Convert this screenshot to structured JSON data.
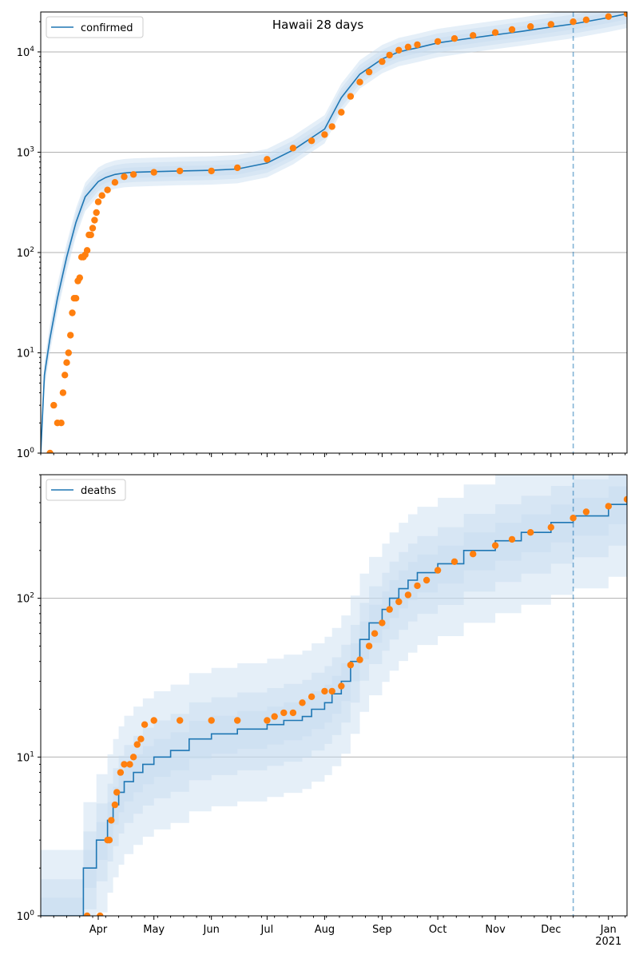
{
  "title": "Hawaii 28 days",
  "colors": {
    "model": "#1f77b4",
    "observed": "#ff7f0e",
    "band": "#c6dbef",
    "grid": "#b0b0b0",
    "forecast_line": "#1f77b4"
  },
  "x_axis": {
    "start": "2020-03-01",
    "end": "2021-01-11",
    "forecast_start": "2020-12-13",
    "month_labels": [
      "Apr",
      "May",
      "Jun",
      "Jul",
      "Aug",
      "Sep",
      "Oct",
      "Nov",
      "Dec",
      "Jan"
    ],
    "month_dates": [
      "2020-04-01",
      "2020-05-01",
      "2020-06-01",
      "2020-07-01",
      "2020-08-01",
      "2020-09-01",
      "2020-10-01",
      "2020-11-01",
      "2020-12-01",
      "2021-01-01"
    ],
    "year_label": "2021"
  },
  "chart_data": [
    {
      "type": "line",
      "panel": "top",
      "legend": "confirmed",
      "legend_position": "top-left",
      "yscale": "log",
      "ylim": [
        1,
        25000
      ],
      "y_tick_labels": [
        "10^0",
        "10^1",
        "10^2",
        "10^3",
        "10^4"
      ],
      "y_tick_values": [
        1,
        10,
        100,
        1000,
        10000
      ],
      "grid": "horizontal",
      "model": {
        "x": [
          "2020-03-01",
          "2020-03-03",
          "2020-03-06",
          "2020-03-10",
          "2020-03-15",
          "2020-03-20",
          "2020-03-25",
          "2020-04-01",
          "2020-04-05",
          "2020-04-10",
          "2020-04-15",
          "2020-04-20",
          "2020-05-01",
          "2020-05-15",
          "2020-06-01",
          "2020-06-15",
          "2020-07-01",
          "2020-07-15",
          "2020-08-01",
          "2020-08-10",
          "2020-08-20",
          "2020-09-01",
          "2020-09-10",
          "2020-09-20",
          "2020-10-01",
          "2020-10-15",
          "2020-11-01",
          "2020-11-15",
          "2020-12-01",
          "2020-12-13",
          "2021-01-01",
          "2021-01-11"
        ],
        "y": [
          1,
          6,
          14,
          35,
          90,
          200,
          360,
          510,
          560,
          600,
          620,
          630,
          640,
          650,
          660,
          680,
          780,
          1050,
          1700,
          3500,
          6000,
          8500,
          10000,
          11000,
          12300,
          13400,
          14800,
          16000,
          17700,
          19000,
          22000,
          24000
        ],
        "band_multipliers": [
          [
            0.72,
            1.38
          ],
          [
            0.8,
            1.24
          ],
          [
            0.88,
            1.12
          ]
        ]
      },
      "observed": {
        "x": [
          "2020-03-06",
          "2020-03-08",
          "2020-03-10",
          "2020-03-12",
          "2020-03-13",
          "2020-03-14",
          "2020-03-15",
          "2020-03-16",
          "2020-03-17",
          "2020-03-18",
          "2020-03-19",
          "2020-03-20",
          "2020-03-21",
          "2020-03-22",
          "2020-03-23",
          "2020-03-24",
          "2020-03-25",
          "2020-03-26",
          "2020-03-27",
          "2020-03-28",
          "2020-03-29",
          "2020-03-30",
          "2020-03-31",
          "2020-04-01",
          "2020-04-03",
          "2020-04-06",
          "2020-04-10",
          "2020-04-15",
          "2020-04-20",
          "2020-05-01",
          "2020-05-15",
          "2020-06-01",
          "2020-06-15",
          "2020-07-01",
          "2020-07-15",
          "2020-07-25",
          "2020-08-01",
          "2020-08-05",
          "2020-08-10",
          "2020-08-15",
          "2020-08-20",
          "2020-08-25",
          "2020-09-01",
          "2020-09-05",
          "2020-09-10",
          "2020-09-15",
          "2020-09-20",
          "2020-10-01",
          "2020-10-10",
          "2020-10-20",
          "2020-11-01",
          "2020-11-10",
          "2020-11-20",
          "2020-12-01",
          "2020-12-13",
          "2020-12-20",
          "2021-01-01",
          "2021-01-11"
        ],
        "y": [
          1,
          3,
          2,
          2,
          4,
          6,
          8,
          10,
          15,
          25,
          35,
          35,
          52,
          56,
          90,
          90,
          95,
          105,
          150,
          150,
          175,
          210,
          250,
          320,
          370,
          420,
          500,
          570,
          600,
          630,
          650,
          650,
          700,
          850,
          1100,
          1300,
          1500,
          1800,
          2500,
          3600,
          5000,
          6300,
          8000,
          9300,
          10400,
          11200,
          11800,
          12700,
          13600,
          14600,
          15600,
          16700,
          17900,
          18800,
          20000,
          20900,
          22500,
          24000
        ]
      }
    },
    {
      "type": "line",
      "panel": "bottom",
      "legend": "deaths",
      "legend_position": "top-left",
      "yscale": "log",
      "ylim": [
        1,
        600
      ],
      "y_tick_labels": [
        "10^0",
        "10^1",
        "10^2"
      ],
      "y_tick_values": [
        1,
        10,
        100
      ],
      "grid": "horizontal",
      "model_step": {
        "x": [
          "2020-03-01",
          "2020-03-24",
          "2020-03-31",
          "2020-04-06",
          "2020-04-09",
          "2020-04-12",
          "2020-04-15",
          "2020-04-20",
          "2020-04-25",
          "2020-05-01",
          "2020-05-10",
          "2020-05-20",
          "2020-06-01",
          "2020-06-15",
          "2020-07-01",
          "2020-07-10",
          "2020-07-20",
          "2020-07-25",
          "2020-08-01",
          "2020-08-05",
          "2020-08-10",
          "2020-08-15",
          "2020-08-20",
          "2020-08-25",
          "2020-09-01",
          "2020-09-05",
          "2020-09-10",
          "2020-09-15",
          "2020-09-20",
          "2020-10-01",
          "2020-10-15",
          "2020-11-01",
          "2020-11-15",
          "2020-12-01",
          "2020-12-13",
          "2021-01-01",
          "2021-01-11"
        ],
        "y": [
          1,
          2,
          3,
          4,
          5,
          6,
          7,
          8,
          9,
          10,
          11,
          13,
          14,
          15,
          16,
          17,
          18,
          20,
          22,
          25,
          30,
          40,
          55,
          70,
          85,
          100,
          115,
          130,
          145,
          165,
          200,
          230,
          260,
          300,
          330,
          390,
          430
        ]
      },
      "band_multipliers": [
        [
          0.35,
          2.6
        ],
        [
          0.55,
          1.7
        ],
        [
          0.75,
          1.3
        ]
      ],
      "observed": {
        "x": [
          "2020-03-26",
          "2020-04-02",
          "2020-04-06",
          "2020-04-07",
          "2020-04-08",
          "2020-04-10",
          "2020-04-11",
          "2020-04-13",
          "2020-04-15",
          "2020-04-18",
          "2020-04-20",
          "2020-04-22",
          "2020-04-24",
          "2020-04-26",
          "2020-05-01",
          "2020-05-15",
          "2020-06-01",
          "2020-06-15",
          "2020-07-01",
          "2020-07-05",
          "2020-07-10",
          "2020-07-15",
          "2020-07-20",
          "2020-07-25",
          "2020-08-01",
          "2020-08-05",
          "2020-08-10",
          "2020-08-15",
          "2020-08-20",
          "2020-08-25",
          "2020-08-28",
          "2020-09-01",
          "2020-09-05",
          "2020-09-10",
          "2020-09-15",
          "2020-09-20",
          "2020-09-25",
          "2020-10-01",
          "2020-10-10",
          "2020-10-20",
          "2020-11-01",
          "2020-11-10",
          "2020-11-20",
          "2020-12-01",
          "2020-12-13",
          "2020-12-20",
          "2021-01-01",
          "2021-01-11"
        ],
        "y": [
          1,
          1,
          3,
          3,
          4,
          5,
          6,
          8,
          9,
          9,
          10,
          12,
          13,
          16,
          17,
          17,
          17,
          17,
          17,
          18,
          19,
          19,
          22,
          24,
          26,
          26,
          28,
          38,
          41,
          50,
          60,
          70,
          85,
          95,
          105,
          120,
          130,
          150,
          170,
          190,
          215,
          235,
          260,
          280,
          320,
          350,
          380,
          420
        ]
      }
    }
  ]
}
